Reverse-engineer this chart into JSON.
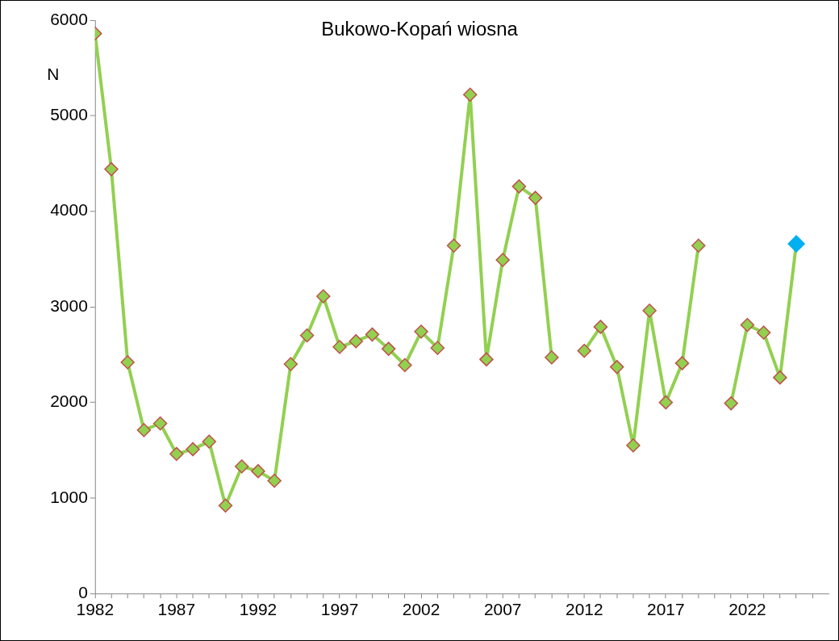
{
  "chart_data": {
    "type": "line",
    "title": "Bukowo-Kopań wiosna",
    "ylabel": "N",
    "x": [
      1982,
      1983,
      1984,
      1985,
      1986,
      1987,
      1988,
      1989,
      1990,
      1991,
      1992,
      1993,
      1994,
      1995,
      1996,
      1997,
      1998,
      1999,
      2000,
      2001,
      2002,
      2003,
      2004,
      2005,
      2006,
      2007,
      2008,
      2009,
      2010,
      2011,
      2012,
      2013,
      2014,
      2015,
      2016,
      2017,
      2018,
      2019,
      2020,
      2021,
      2022,
      2023,
      2024,
      2025
    ],
    "series": [
      {
        "color": "#92d050",
        "values": [
          5860,
          4440,
          2420,
          1710,
          1780,
          1460,
          1510,
          1590,
          920,
          1330,
          1280,
          1180,
          2400,
          2700,
          3110,
          2580,
          2640,
          2710,
          2560,
          2390,
          2740,
          2570,
          3640,
          5220,
          2450,
          3490,
          4260,
          4140,
          2470,
          null,
          2540,
          2790,
          2370,
          1550,
          2960,
          2000,
          2410,
          3640,
          null,
          1990,
          2810,
          2730,
          2260,
          3660
        ],
        "colors": [
          "#92d050",
          "#92d050",
          "#92d050",
          "#92d050",
          "#92d050",
          "#92d050",
          "#92d050",
          "#92d050",
          "#92d050",
          "#92d050",
          "#92d050",
          "#92d050",
          "#92d050",
          "#92d050",
          "#92d050",
          "#92d050",
          "#92d050",
          "#92d050",
          "#92d050",
          "#92d050",
          "#92d050",
          "#92d050",
          "#92d050",
          "#92d050",
          "#92d050",
          "#92d050",
          "#92d050",
          "#92d050",
          "#92d050",
          "#92d050",
          "#92d050",
          "#92d050",
          "#92d050",
          "#92d050",
          "#92d050",
          "#92d050",
          "#92d050",
          "#92d050",
          "#92d050",
          "#92d050",
          "#92d050",
          "#92d050",
          "#92d050",
          "#00b0f0"
        ]
      }
    ],
    "xlim": [
      1982,
      2027
    ],
    "xticks": [
      1982,
      {
        "value": 1983,
        "label": null
      },
      {
        "value": 1984,
        "label": null
      },
      {
        "value": 1985,
        "label": null
      },
      {
        "value": 1986,
        "label": null
      },
      1987,
      {
        "value": 1988,
        "label": null
      },
      {
        "value": 1989,
        "label": null
      },
      {
        "value": 1990,
        "label": null
      },
      {
        "value": 1991,
        "label": null
      },
      1992,
      {
        "value": 1993,
        "label": null
      },
      {
        "value": 1994,
        "label": null
      },
      {
        "value": 1995,
        "label": null
      },
      {
        "value": 1996,
        "label": null
      },
      1997,
      {
        "value": 1998,
        "label": null
      },
      {
        "value": 1999,
        "label": null
      },
      {
        "value": 2000,
        "label": null
      },
      {
        "value": 2001,
        "label": null
      },
      2002,
      {
        "value": 2003,
        "label": null
      },
      {
        "value": 2004,
        "label": null
      },
      {
        "value": 2005,
        "label": null
      },
      {
        "value": 2006,
        "label": null
      },
      2007,
      {
        "value": 2008,
        "label": null
      },
      {
        "value": 2009,
        "label": null
      },
      {
        "value": 2010,
        "label": null
      },
      {
        "value": 2011,
        "label": null
      },
      2012,
      {
        "value": 2013,
        "label": null
      },
      {
        "value": 2014,
        "label": null
      },
      {
        "value": 2015,
        "label": null
      },
      {
        "value": 2016,
        "label": null
      },
      2017,
      {
        "value": 2018,
        "label": null
      },
      {
        "value": 2019,
        "label": null
      },
      {
        "value": 2020,
        "label": null
      },
      {
        "value": 2021,
        "label": null
      },
      2022,
      {
        "value": 2023,
        "label": null
      },
      {
        "value": 2024,
        "label": null
      },
      {
        "value": 2025,
        "label": null
      },
      {
        "value": 2026,
        "label": null
      }
    ],
    "ylim": [
      0,
      6000
    ],
    "yticks": [
      0,
      1000,
      2000,
      3000,
      4000,
      5000,
      6000
    ],
    "grid": false,
    "legend": false,
    "marker": "diamond",
    "line_style": "solid"
  }
}
